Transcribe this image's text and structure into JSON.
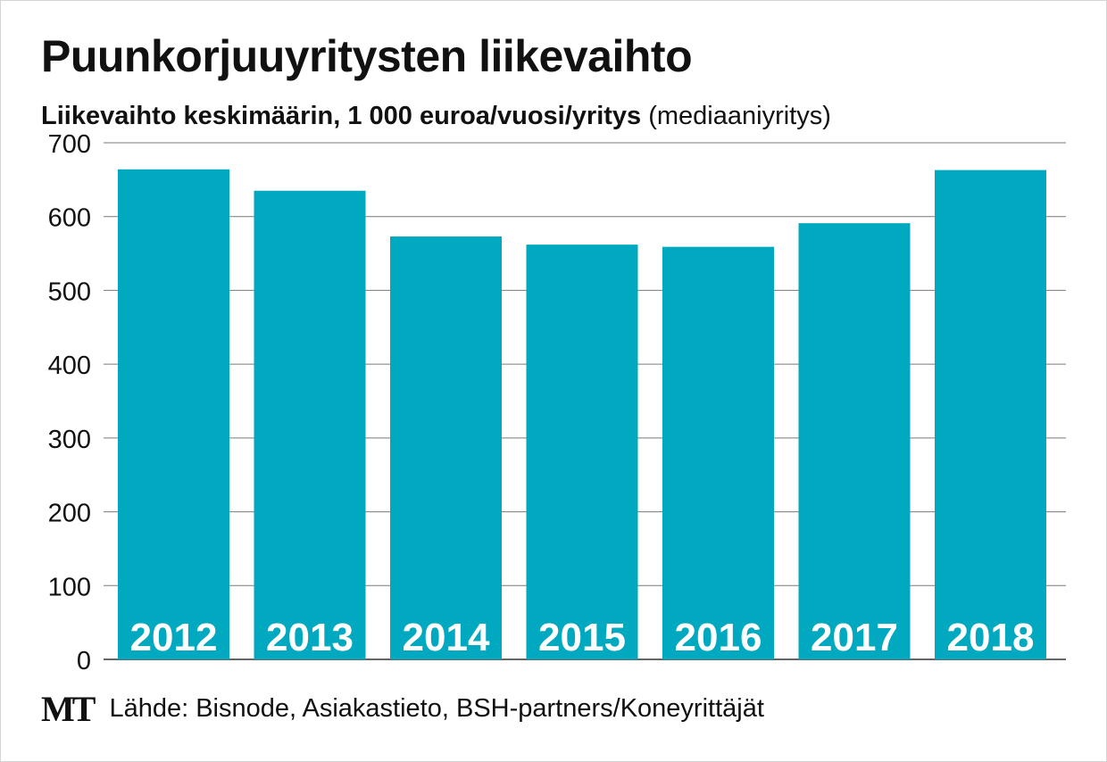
{
  "chart_data": {
    "type": "bar",
    "title": "Puunkorjuuyritysten liikevaihto",
    "subtitle_bold": "Liikevaihto keskimäärin, 1 000 euroa/vuosi/yritys",
    "subtitle_normal": "(mediaaniyritys)",
    "categories": [
      "2012",
      "2013",
      "2014",
      "2015",
      "2016",
      "2017",
      "2018"
    ],
    "values": [
      664,
      635,
      573,
      562,
      559,
      591,
      663
    ],
    "ylim": [
      0,
      700
    ],
    "yticks": [
      0,
      100,
      200,
      300,
      400,
      500,
      600,
      700
    ],
    "grid": true,
    "bar_color": "#00a9bf",
    "category_labels_inside_bars": true
  },
  "footer": {
    "logo": "MT",
    "source": "Lähde: Bisnode, Asiakastieto, BSH-partners/Koneyrittäjät"
  }
}
